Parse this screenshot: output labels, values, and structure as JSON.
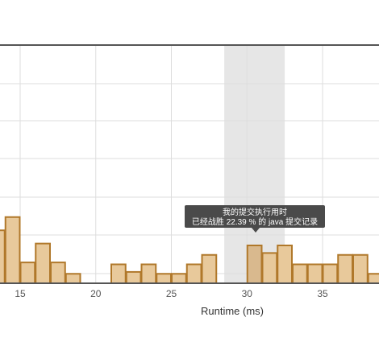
{
  "chart_data": {
    "type": "bar",
    "title": "",
    "xlabel": "Runtime (ms)",
    "ylabel": "",
    "grid": true,
    "x_ticks": [
      15,
      20,
      25,
      30,
      35
    ],
    "bin_width_ms": 1,
    "bins": [
      {
        "start": 13,
        "value": 1.4
      },
      {
        "start": 14,
        "value": 1.75
      },
      {
        "start": 15,
        "value": 0.55
      },
      {
        "start": 16,
        "value": 1.05
      },
      {
        "start": 17,
        "value": 0.55
      },
      {
        "start": 18,
        "value": 0.25
      },
      {
        "start": 21,
        "value": 0.5
      },
      {
        "start": 22,
        "value": 0.3
      },
      {
        "start": 23,
        "value": 0.5
      },
      {
        "start": 24,
        "value": 0.25
      },
      {
        "start": 25,
        "value": 0.25
      },
      {
        "start": 26,
        "value": 0.5
      },
      {
        "start": 27,
        "value": 0.75
      },
      {
        "start": 30,
        "value": 1.0
      },
      {
        "start": 31,
        "value": 0.8
      },
      {
        "start": 32,
        "value": 1.0
      },
      {
        "start": 33,
        "value": 0.5
      },
      {
        "start": 34,
        "value": 0.5
      },
      {
        "start": 35,
        "value": 0.5
      },
      {
        "start": 36,
        "value": 0.75
      },
      {
        "start": 37,
        "value": 0.75
      },
      {
        "start": 38,
        "value": 0.25
      }
    ],
    "highlight_range": [
      28.5,
      32.5
    ],
    "highlight_bin_start": 30,
    "tooltip": {
      "line1": "我的提交执行用时",
      "line2": "已经战胜 22.39 % 的 java 提交记录"
    },
    "colors": {
      "bar_fill": "#e8c99b",
      "bar_stroke": "#b0782a",
      "highlight_bar_fill": "#d9b98e",
      "highlight_band": "#e6e6e6",
      "grid": "#dddddd",
      "axis": "#555555",
      "tooltip_bg": "#4a4a4a"
    }
  }
}
